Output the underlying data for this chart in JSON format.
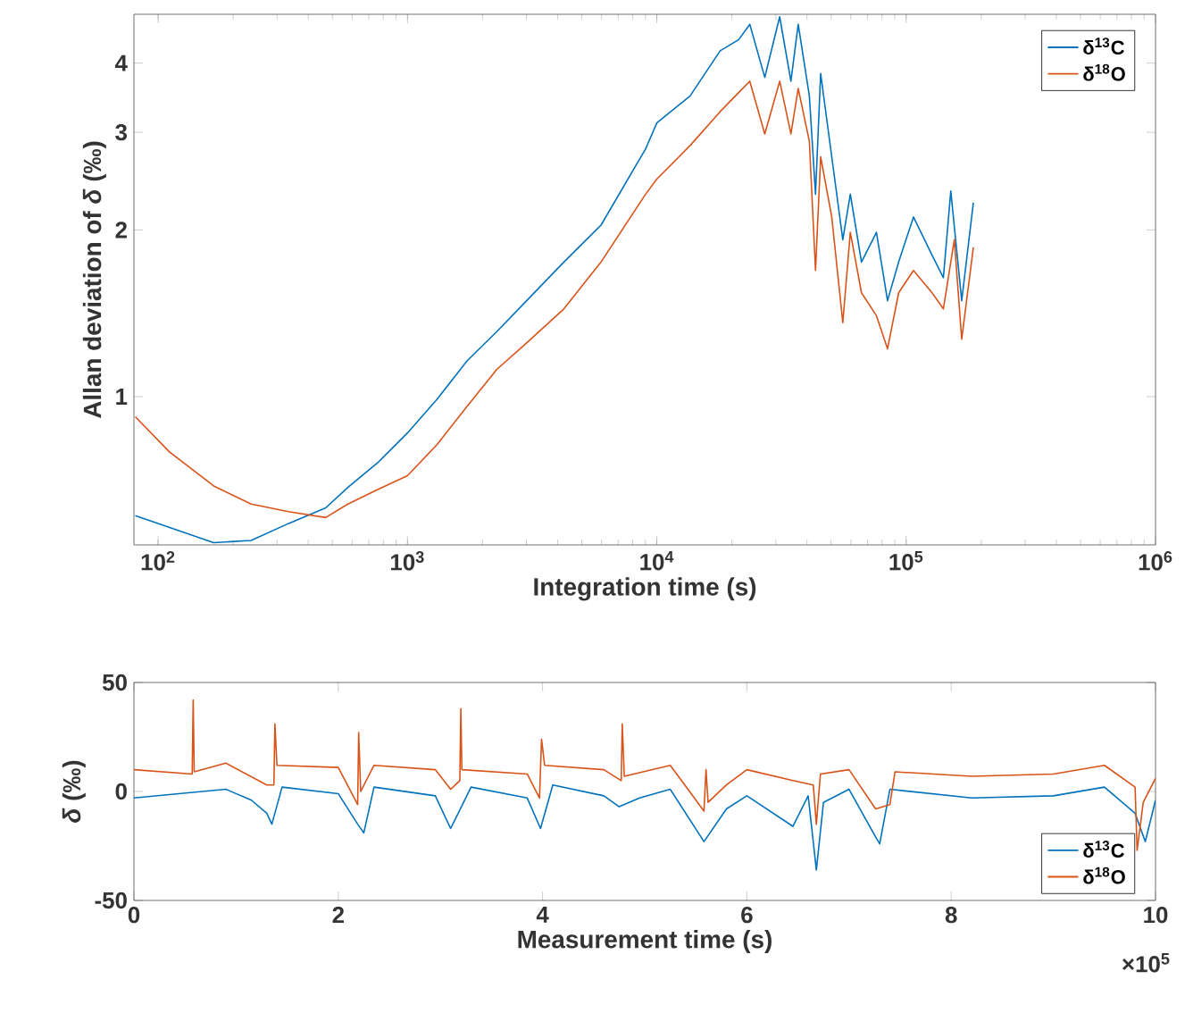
{
  "chart_data": [
    {
      "type": "line",
      "xlabel": "Integration time (s)",
      "ylabel": "Allan deviation of *δ* (‰)",
      "log": "xy",
      "legend": "top right",
      "xlim": [
        80,
        1000000
      ],
      "ylim": [
        0.54,
        4.9
      ],
      "xticks": [
        {
          "value": 100,
          "label": "10$^{2}$"
        },
        {
          "value": 1000,
          "label": "10$^{3}$"
        },
        {
          "value": 10000,
          "label": "10$^{4}$"
        },
        {
          "value": 100000,
          "label": "10$^{5}$"
        },
        {
          "value": 1000000,
          "label": "10$^{6}$"
        }
      ],
      "yticks": [
        1,
        2,
        3,
        4
      ],
      "series": [
        {
          "name": "δ$^{13}$C",
          "color": "#0072bd",
          "x": [
            81,
            167,
            236,
            333,
            470,
            577,
            760,
            1000,
            1316,
            1733,
            2282,
            3005,
            4238,
            5974,
            9017,
            10000,
            13600,
            17950,
            21300,
            23600,
            27100,
            31100,
            34500,
            36900,
            40900,
            43300,
            45400,
            50300,
            55700,
            59700,
            66200,
            76000,
            84200,
            93300,
            107000,
            127000,
            141000,
            151000,
            167000,
            186000
          ],
          "values": [
            0.61,
            0.545,
            0.55,
            0.59,
            0.63,
            0.686,
            0.76,
            0.86,
            0.99,
            1.16,
            1.31,
            1.49,
            1.75,
            2.04,
            2.8,
            3.12,
            3.49,
            4.21,
            4.41,
            4.7,
            3.77,
            4.85,
            3.71,
            4.7,
            3.49,
            2.32,
            3.83,
            2.71,
            1.92,
            2.32,
            1.75,
            1.98,
            1.49,
            1.75,
            2.11,
            1.8,
            1.64,
            2.35,
            1.49,
            2.24
          ]
        },
        {
          "name": "δ$^{18}$O",
          "color": "#d95319",
          "x": [
            81,
            111,
            167,
            236,
            333,
            470,
            577,
            760,
            1000,
            1316,
            1733,
            2282,
            3005,
            4238,
            5974,
            9017,
            10000,
            13600,
            17950,
            21300,
            23600,
            27100,
            31100,
            34500,
            36900,
            40900,
            43300,
            45400,
            50300,
            55700,
            59700,
            66200,
            76000,
            84200,
            93300,
            107000,
            127000,
            141000,
            156000,
            167000,
            186000
          ],
          "values": [
            0.92,
            0.795,
            0.69,
            0.64,
            0.62,
            0.605,
            0.64,
            0.68,
            0.72,
            0.82,
            0.96,
            1.12,
            1.25,
            1.44,
            1.75,
            2.32,
            2.47,
            2.84,
            3.27,
            3.54,
            3.71,
            2.98,
            3.71,
            2.98,
            3.6,
            2.89,
            1.69,
            2.71,
            2.11,
            1.36,
            1.98,
            1.54,
            1.4,
            1.22,
            1.54,
            1.69,
            1.54,
            1.44,
            1.92,
            1.27,
            1.86
          ]
        }
      ]
    },
    {
      "type": "line",
      "xlabel": "Measurement time (s)",
      "ylabel": "*δ* (‰)",
      "legend": "bottom right",
      "annotations": [
        "×10$^{5}$"
      ],
      "xlim": [
        0,
        10
      ],
      "ylim": [
        -50,
        50
      ],
      "xticks": [
        0,
        2,
        4,
        6,
        8,
        10
      ],
      "yticks": [
        -50,
        0,
        50
      ],
      "series": [
        {
          "name": "δ$^{13}$C",
          "color": "#0072bd",
          "x": [
            0,
            0.9,
            1.15,
            1.3,
            1.35,
            1.45,
            2.0,
            2.19,
            2.25,
            2.35,
            2.95,
            3.1,
            3.3,
            3.85,
            3.98,
            4.1,
            4.6,
            4.75,
            4.95,
            5.25,
            5.58,
            5.8,
            6.0,
            6.45,
            6.6,
            6.68,
            6.75,
            7.0,
            7.25,
            7.3,
            7.4,
            8.2,
            9.0,
            9.5,
            9.8,
            9.9,
            10
          ],
          "values": [
            -3,
            1,
            -4,
            -10,
            -15,
            2,
            -1,
            -15,
            -19,
            2,
            -2,
            -17,
            2,
            -3,
            -17,
            3,
            -2,
            -7,
            -3,
            1,
            -23,
            -8,
            -2,
            -16,
            -2,
            -36,
            -5,
            1,
            -20,
            -24,
            1,
            -3,
            -2,
            2,
            -10,
            -23,
            -4
          ]
        },
        {
          "name": "δ$^{18}$O",
          "color": "#d95319",
          "x": [
            0,
            0.57,
            0.58,
            0.59,
            0.9,
            1.3,
            1.37,
            1.38,
            1.4,
            2.0,
            2.19,
            2.2,
            2.22,
            2.35,
            2.95,
            3.1,
            3.19,
            3.2,
            3.21,
            3.85,
            3.97,
            3.99,
            4.02,
            4.6,
            4.77,
            4.78,
            4.8,
            5.25,
            5.58,
            5.6,
            5.62,
            5.8,
            6.0,
            6.45,
            6.65,
            6.68,
            6.72,
            7.0,
            7.26,
            7.4,
            7.45,
            8.2,
            9.0,
            9.5,
            9.8,
            9.82,
            9.88,
            10
          ],
          "values": [
            10,
            8,
            42,
            9,
            13,
            3,
            3,
            31,
            12,
            11,
            -6,
            27,
            0,
            12,
            10,
            1,
            5,
            38,
            10,
            8,
            -3,
            24,
            12,
            10,
            5,
            31,
            7,
            12,
            -9,
            10,
            -5,
            3,
            10,
            5,
            3,
            -15,
            8,
            10,
            -8,
            -6,
            9,
            7,
            8,
            12,
            2,
            -27,
            -5,
            6
          ]
        }
      ]
    }
  ]
}
